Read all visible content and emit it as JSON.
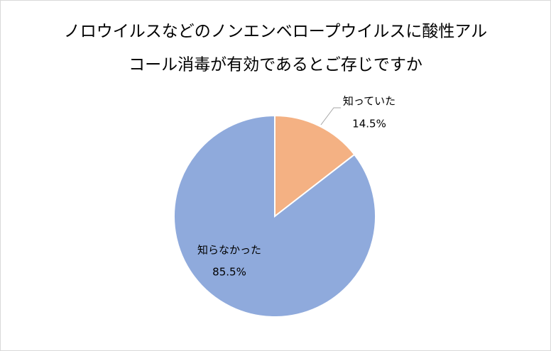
{
  "chart_data": {
    "type": "pie",
    "title": [
      "ノロウイルスなどのノンエンベロープウイルスに酸性アル",
      "コール消毒が有効であるとご存じですか"
    ],
    "categories": [
      "知っていた",
      "知らなかった"
    ],
    "values": [
      14.5,
      85.5
    ],
    "value_labels": [
      "14.5%",
      "85.5%"
    ],
    "colors": [
      "#f4b183",
      "#8faadc"
    ]
  }
}
